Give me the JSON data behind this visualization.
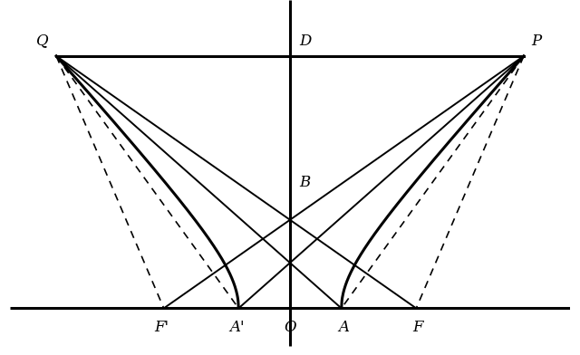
{
  "bg_color": "#ffffff",
  "line_color": "#000000",
  "fig_width": 6.4,
  "fig_height": 3.92,
  "dpi": 100,
  "O": [
    0.0,
    0.0
  ],
  "a": 0.55,
  "Q": [
    -2.5,
    2.7
  ],
  "P": [
    2.5,
    2.7
  ],
  "D": [
    0.0,
    2.7
  ],
  "B": [
    0.0,
    1.35
  ],
  "A": [
    0.55,
    0.0
  ],
  "Ap": [
    -0.55,
    0.0
  ],
  "F": [
    1.35,
    0.0
  ],
  "Fp": [
    -1.35,
    0.0
  ],
  "xlim": [
    -3.0,
    3.0
  ],
  "ylim": [
    -0.5,
    3.3
  ],
  "lw_thick": 2.2,
  "lw_thin": 1.4,
  "lw_dashed": 1.2,
  "label_fontsize": 12
}
